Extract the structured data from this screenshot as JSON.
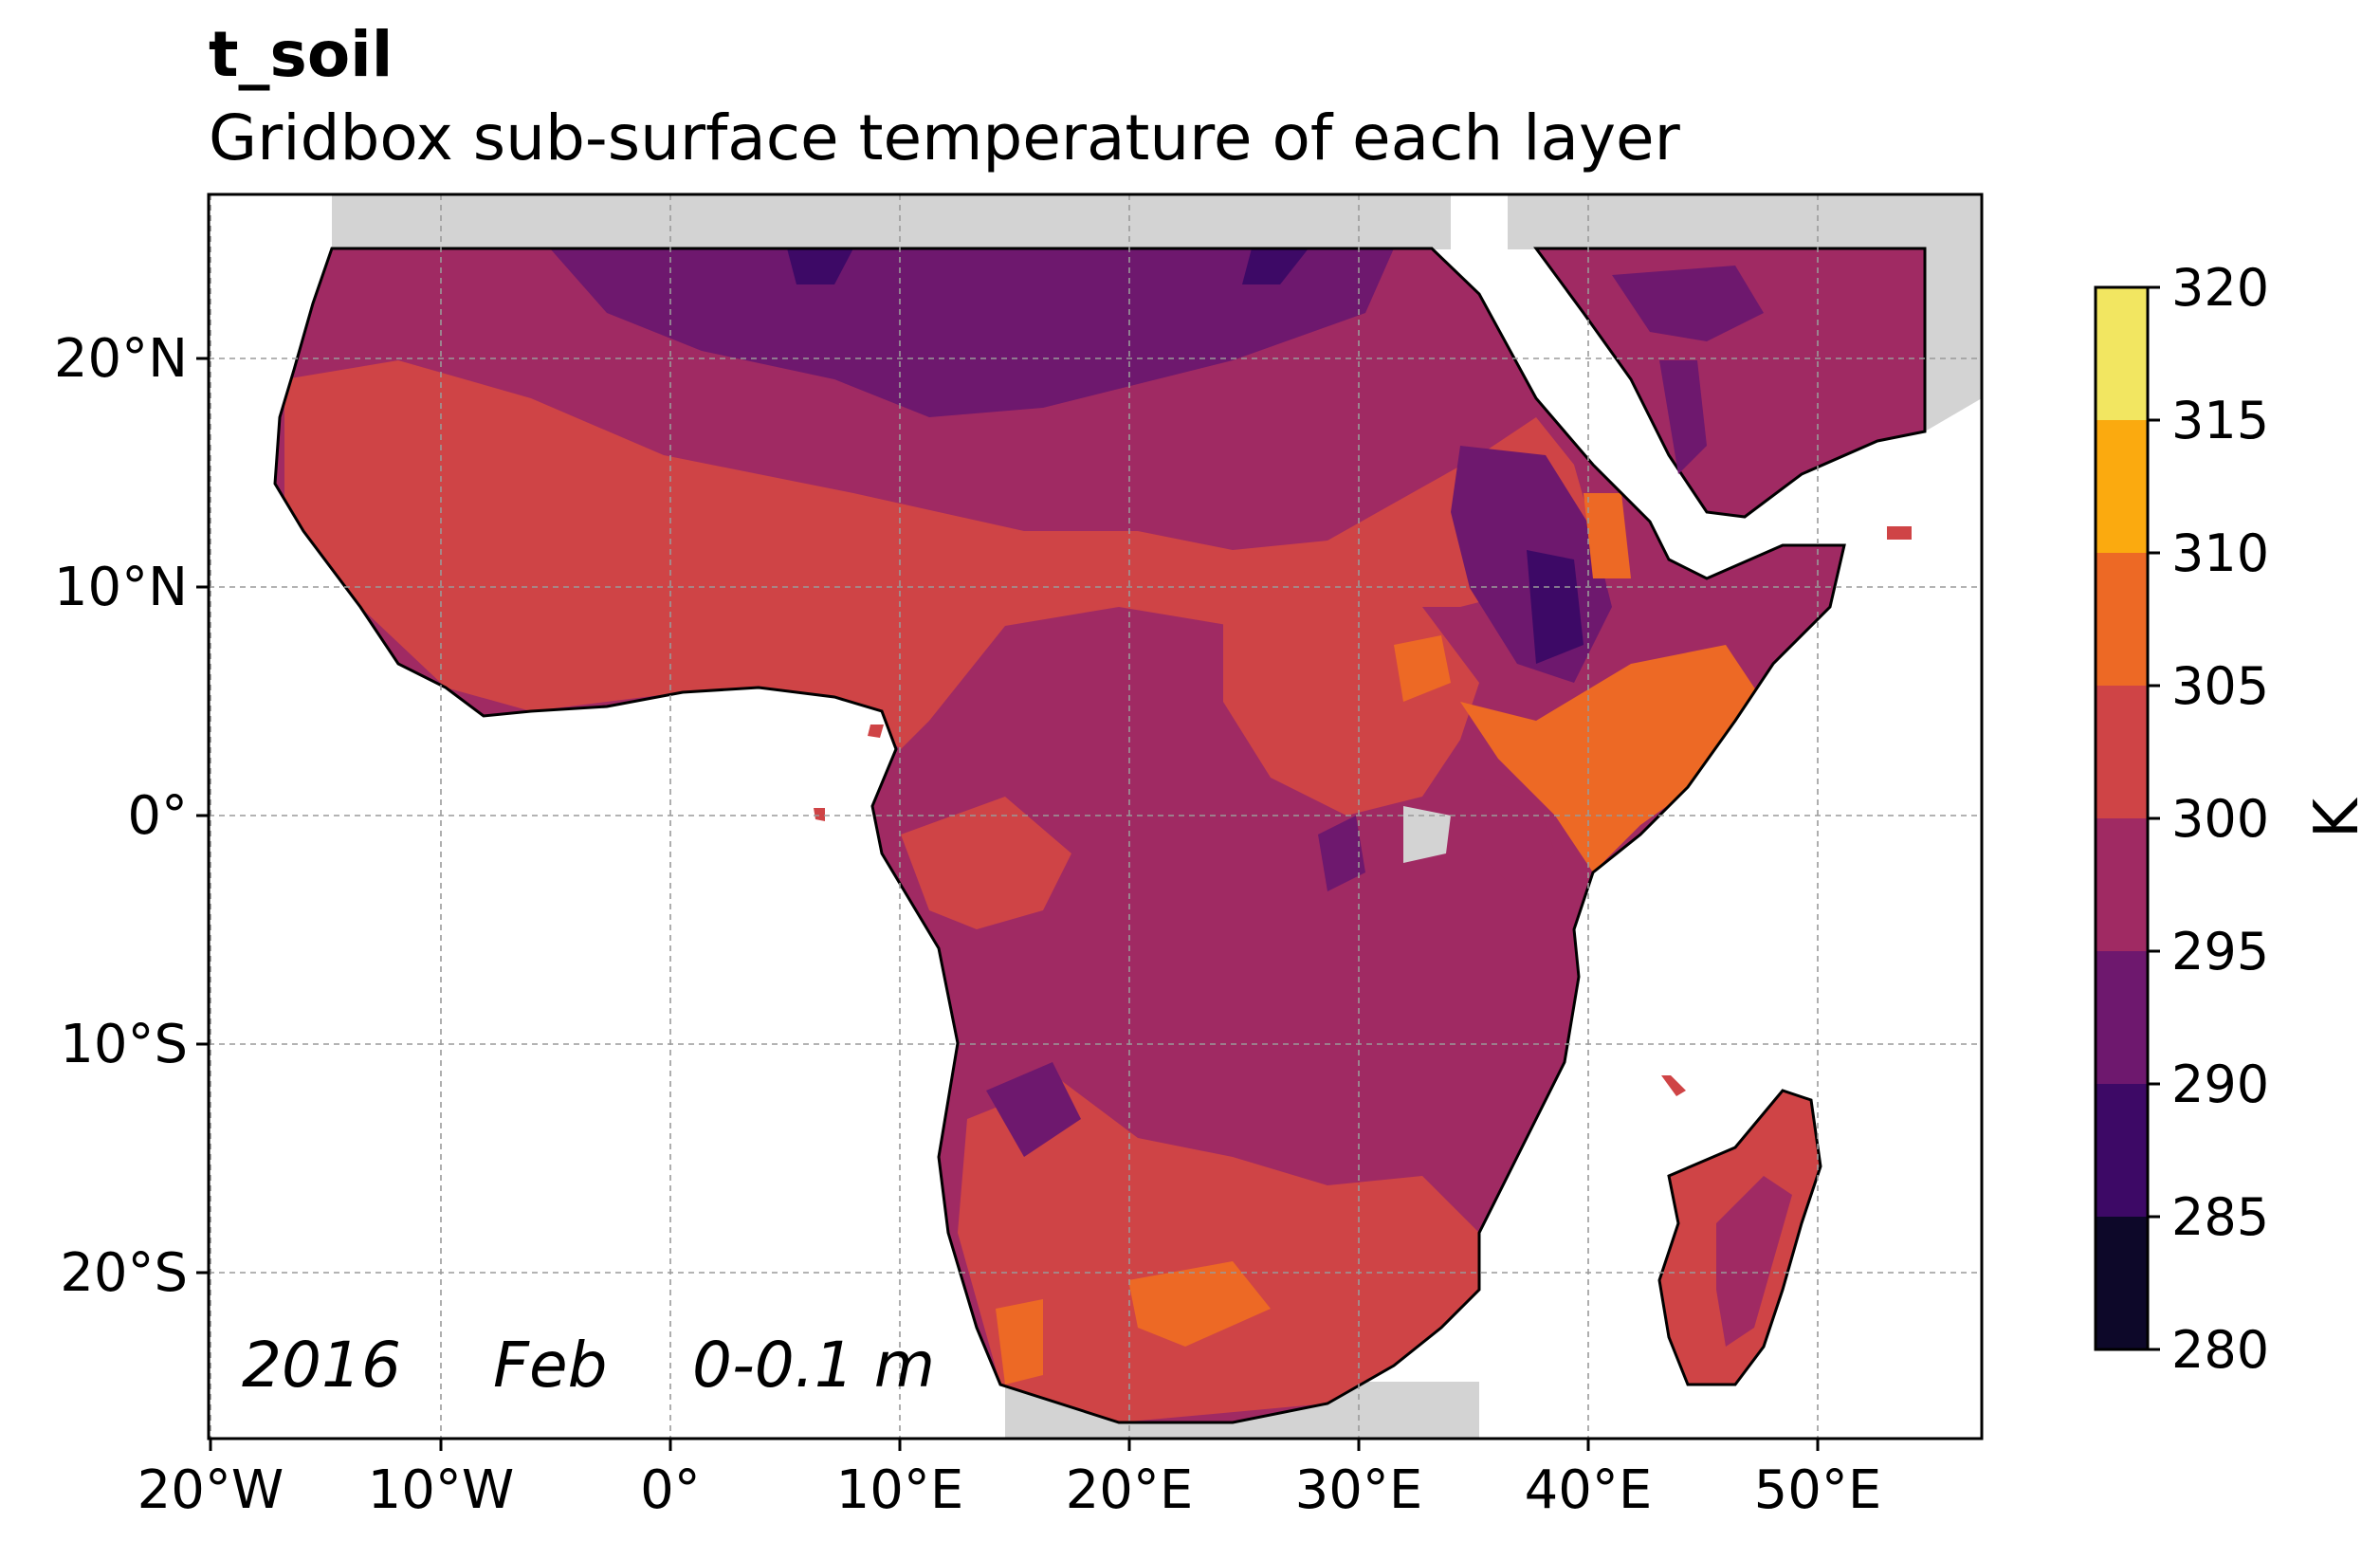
{
  "title": "t_soil",
  "subtitle": "Gridbox sub-surface temperature of each layer",
  "annotation": {
    "year": "2016",
    "month": "Feb",
    "depth": "0-0.1 m"
  },
  "map": {
    "lon_labels": [
      "20°W",
      "10°W",
      "0°",
      "10°E",
      "20°E",
      "30°E",
      "40°E",
      "50°E"
    ],
    "lat_labels": [
      "20°N",
      "10°N",
      "0°",
      "10°S",
      "20°S"
    ],
    "missing_color": "#d3d3d3",
    "ocean_color": "#ffffff"
  },
  "colorbar": {
    "label": "K",
    "ticks": [
      "320",
      "315",
      "310",
      "305",
      "300",
      "295",
      "290",
      "285",
      "280"
    ],
    "levels": [
      {
        "range": "315-320",
        "color": "#f2e661"
      },
      {
        "range": "310-315",
        "color": "#fbaa0f"
      },
      {
        "range": "305-310",
        "color": "#ed6925"
      },
      {
        "range": "300-305",
        "color": "#cf4446"
      },
      {
        "range": "295-300",
        "color": "#a02a63"
      },
      {
        "range": "290-295",
        "color": "#6e186e"
      },
      {
        "range": "285-290",
        "color": "#3d0966"
      },
      {
        "range": "280-285",
        "color": "#0d0829"
      }
    ]
  }
}
